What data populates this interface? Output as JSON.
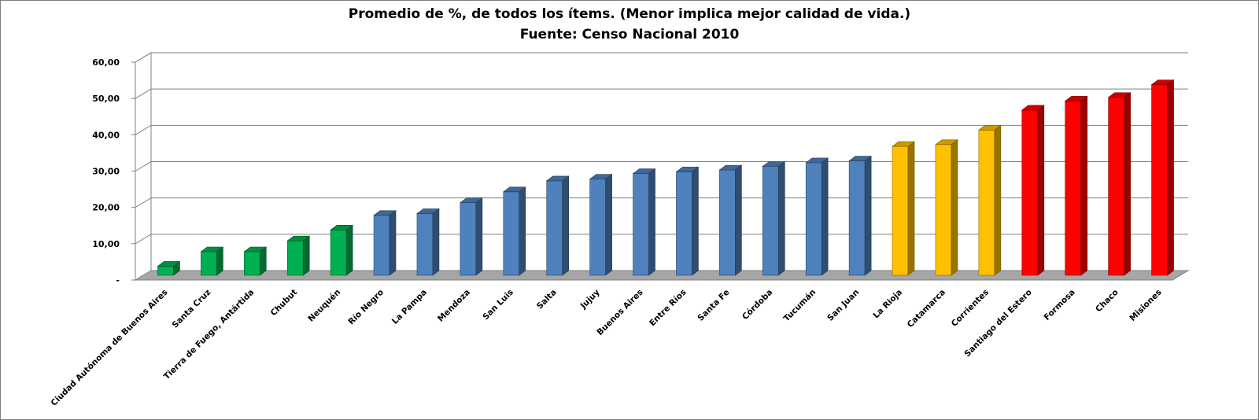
{
  "chart_data": {
    "type": "bar",
    "title": "Promedio de %, de todos los ítems. (Menor implica mejor calidad de vida.)",
    "subtitle": "Fuente: Censo Nacional 2010",
    "xlabel": "",
    "ylabel": "",
    "ylim": [
      0,
      60
    ],
    "y_ticks": [
      "-",
      "10,00",
      "20,00",
      "30,00",
      "40,00",
      "50,00",
      "60,00"
    ],
    "grid": true,
    "legend": "none",
    "categories": [
      "Ciudad Autónoma de Buenos Aires",
      "Santa Cruz",
      "Tierra de Fuego, Antártida",
      "Chubut",
      "Neuquén",
      "Río Negro",
      "La Pampa",
      "Mendoza",
      "San Luis",
      "Salta",
      "Jujuy",
      "Buenos Aires",
      "Entre Ríos",
      "Santa Fe",
      "Córdoba",
      "Tucumán",
      "San Juan",
      "La Rioja",
      "Catamarca",
      "Corrientes",
      "Santiago del Estero",
      "Formosa",
      "Chaco",
      "Misiones"
    ],
    "values": [
      2.5,
      6.5,
      6.5,
      9.5,
      12.5,
      16.5,
      17.0,
      20.0,
      23.0,
      26.0,
      26.5,
      28.0,
      28.5,
      29.0,
      30.0,
      31.0,
      31.5,
      35.5,
      36.0,
      40.0,
      45.5,
      48.0,
      49.0,
      52.5
    ],
    "colors": [
      "#00b050",
      "#00b050",
      "#00b050",
      "#00b050",
      "#00b050",
      "#4f81bd",
      "#4f81bd",
      "#4f81bd",
      "#4f81bd",
      "#4f81bd",
      "#4f81bd",
      "#4f81bd",
      "#4f81bd",
      "#4f81bd",
      "#4f81bd",
      "#4f81bd",
      "#4f81bd",
      "#ffc000",
      "#ffc000",
      "#ffc000",
      "#ff0000",
      "#ff0000",
      "#ff0000",
      "#ff0000"
    ]
  }
}
